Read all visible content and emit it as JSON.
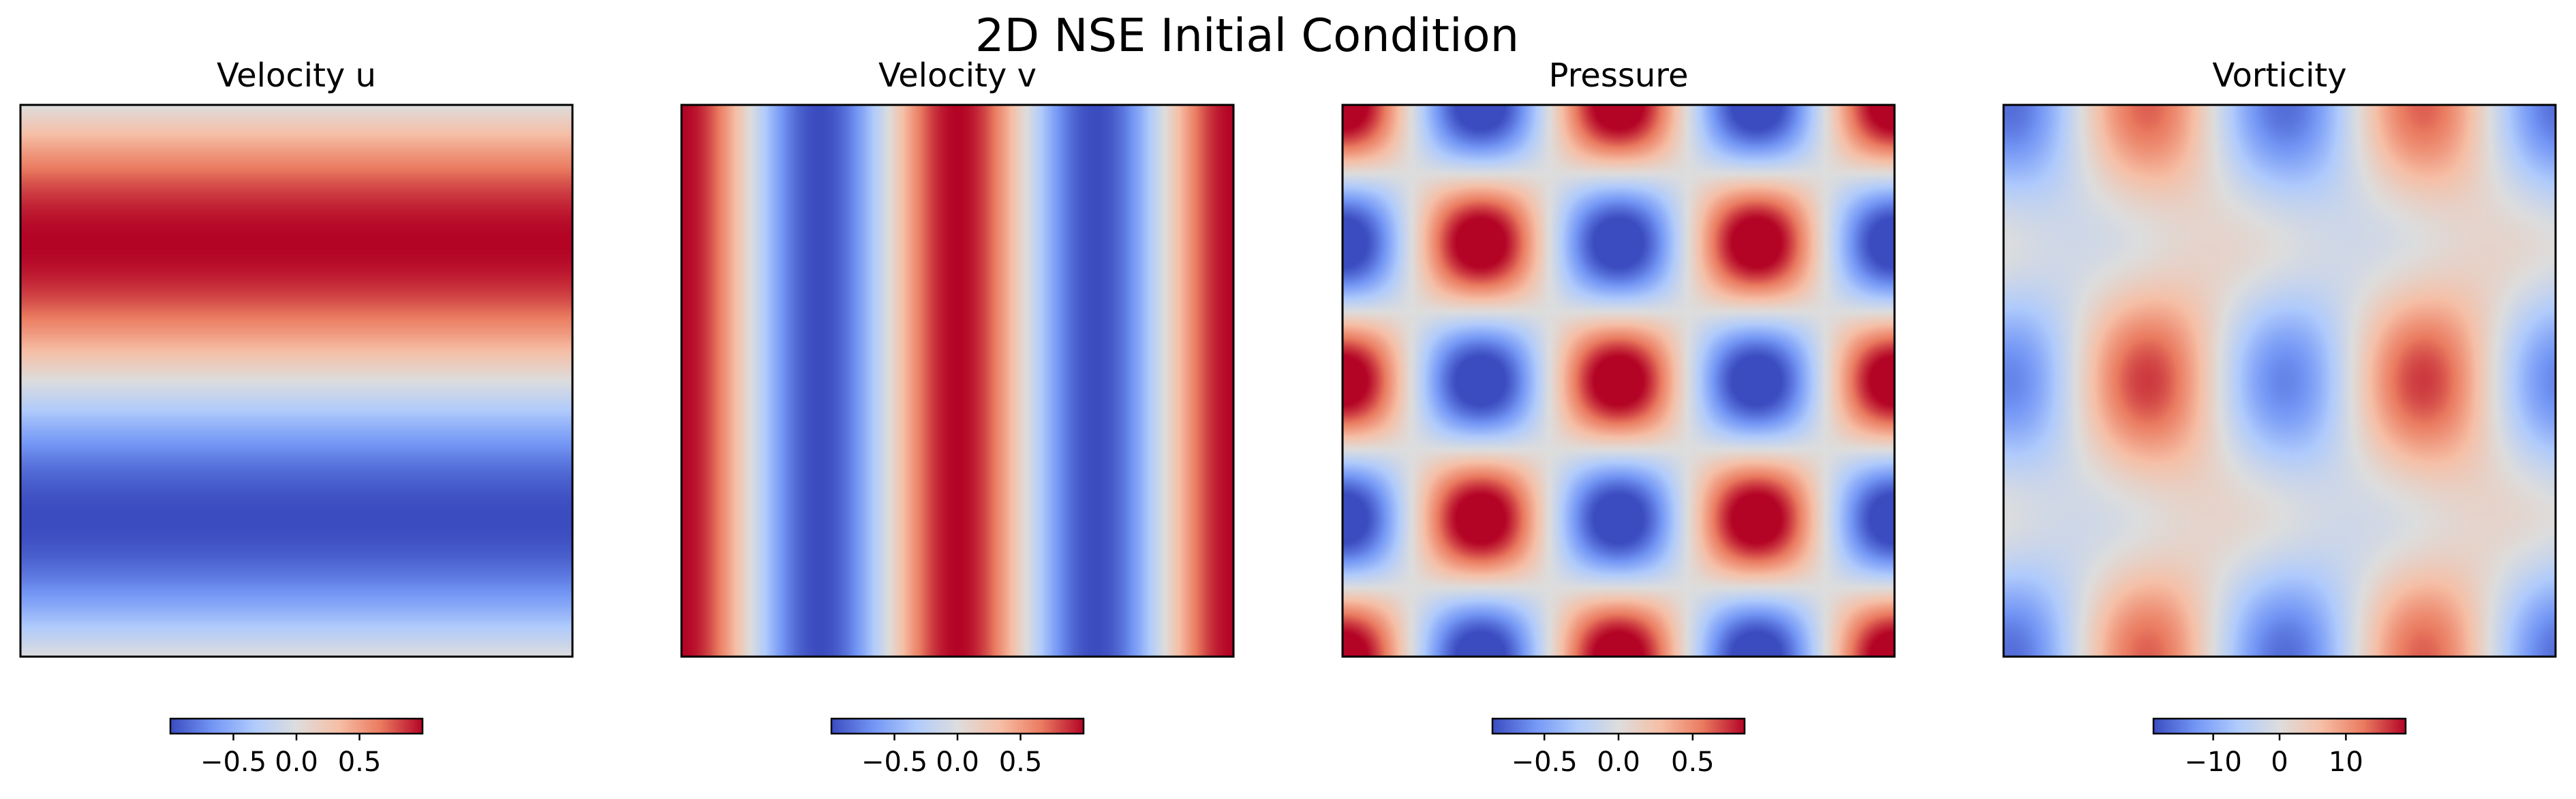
{
  "chart_data": {
    "type": "heatmap",
    "title": "2D NSE Initial Condition",
    "colormap": "coolwarm",
    "colormap_stops": [
      "#3b4cc0",
      "#7396f5",
      "#b0cbfc",
      "#dddddd",
      "#f6bfa6",
      "#ea7b60",
      "#b40426"
    ],
    "panels": [
      {
        "title": "Velocity u",
        "field": "u = sin(y)",
        "vmin": -1.0,
        "vmax": 1.0,
        "colorbar_ticks": [
          -0.5,
          0.0,
          0.5
        ],
        "colorbar_labels": [
          "−0.5",
          "0.0",
          "0.5"
        ]
      },
      {
        "title": "Velocity v",
        "field": "v = cos(2x)",
        "vmin": -1.0,
        "vmax": 1.0,
        "colorbar_ticks": [
          -0.5,
          0.0,
          0.5
        ],
        "colorbar_labels": [
          "−0.5",
          "0.0",
          "0.5"
        ]
      },
      {
        "title": "Pressure",
        "field": "p = cos(2x)·cos(2y)",
        "vmin": -0.85,
        "vmax": 0.85,
        "colorbar_ticks": [
          -0.5,
          0.0,
          0.5
        ],
        "colorbar_labels": [
          "−0.5",
          "0.0",
          "0.5"
        ]
      },
      {
        "title": "Vorticity",
        "field": "ω = ∂v/∂x − ∂u/∂y",
        "vmin": -19,
        "vmax": 19,
        "colorbar_ticks": [
          -10,
          0,
          10
        ],
        "colorbar_labels": [
          "−10",
          "0",
          "10"
        ]
      }
    ]
  }
}
